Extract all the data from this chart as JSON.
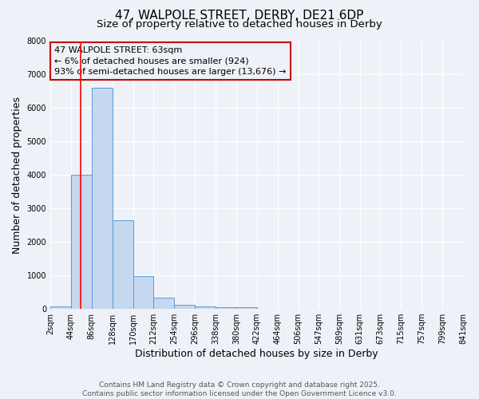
{
  "title_line1": "47, WALPOLE STREET, DERBY, DE21 6DP",
  "title_line2": "Size of property relative to detached houses in Derby",
  "xlabel": "Distribution of detached houses by size in Derby",
  "ylabel": "Number of detached properties",
  "bin_edges": [
    2,
    44,
    86,
    128,
    170,
    212,
    254,
    296,
    338,
    380,
    422,
    464,
    506,
    547,
    589,
    631,
    673,
    715,
    757,
    799,
    841
  ],
  "bar_heights": [
    70,
    4000,
    6600,
    2650,
    970,
    340,
    130,
    70,
    50,
    50,
    0,
    0,
    0,
    0,
    0,
    0,
    0,
    0,
    0,
    0
  ],
  "bar_color": "#c5d8ef",
  "bar_edge_color": "#5b9bd5",
  "red_line_x": 63,
  "annotation_title": "47 WALPOLE STREET: 63sqm",
  "annotation_line1": "← 6% of detached houses are smaller (924)",
  "annotation_line2": "93% of semi-detached houses are larger (13,676) →",
  "annotation_box_color": "#cc0000",
  "ylim": [
    0,
    8000
  ],
  "yticks": [
    0,
    1000,
    2000,
    3000,
    4000,
    5000,
    6000,
    7000,
    8000
  ],
  "xtick_labels": [
    "2sqm",
    "44sqm",
    "86sqm",
    "128sqm",
    "170sqm",
    "212sqm",
    "254sqm",
    "296sqm",
    "338sqm",
    "380sqm",
    "422sqm",
    "464sqm",
    "506sqm",
    "547sqm",
    "589sqm",
    "631sqm",
    "673sqm",
    "715sqm",
    "757sqm",
    "799sqm",
    "841sqm"
  ],
  "footer_line1": "Contains HM Land Registry data © Crown copyright and database right 2025.",
  "footer_line2": "Contains public sector information licensed under the Open Government Licence v3.0.",
  "bg_color": "#eef2f8",
  "grid_color": "#ffffff",
  "title_fontsize": 11,
  "subtitle_fontsize": 9.5,
  "axis_label_fontsize": 9,
  "tick_fontsize": 7,
  "annotation_fontsize": 8,
  "footer_fontsize": 6.5
}
